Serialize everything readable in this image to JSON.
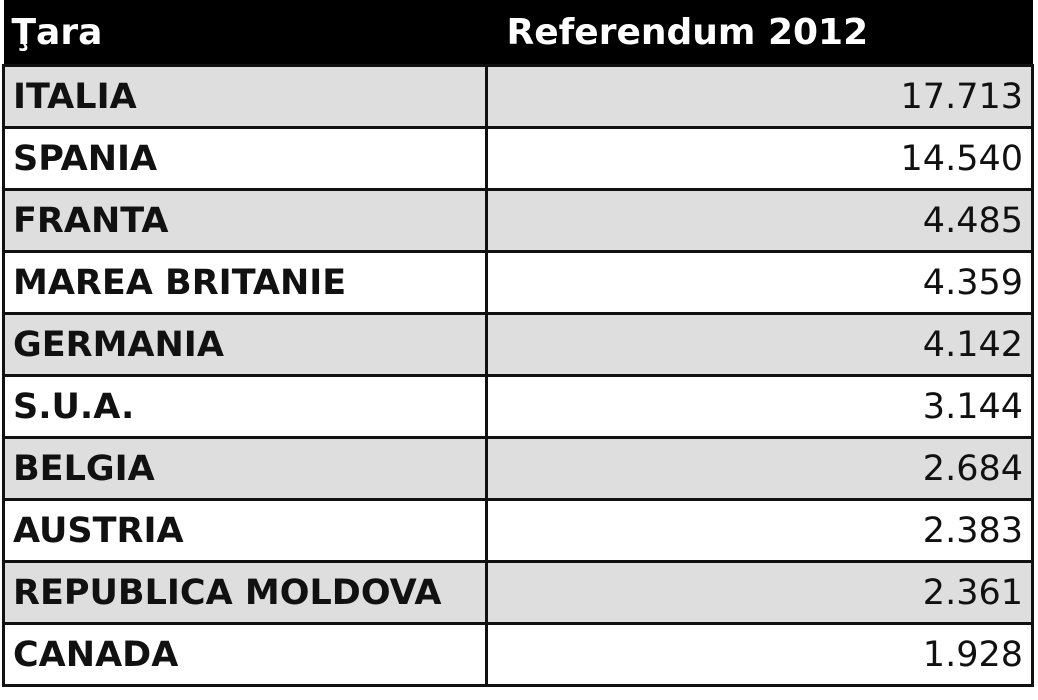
{
  "table": {
    "headers": [
      "Ţara",
      "Referendum 2012"
    ],
    "rows": [
      {
        "country": "ITALIA",
        "value": "17.713"
      },
      {
        "country": "SPANIA",
        "value": "14.540"
      },
      {
        "country": "FRANTA",
        "value": "4.485"
      },
      {
        "country": "MAREA BRITANIE",
        "value": "4.359"
      },
      {
        "country": "GERMANIA",
        "value": "4.142"
      },
      {
        "country": "S.U.A.",
        "value": "3.144"
      },
      {
        "country": "BELGIA",
        "value": "2.684"
      },
      {
        "country": "AUSTRIA",
        "value": "2.383"
      },
      {
        "country": "REPUBLICA MOLDOVA",
        "value": "2.361"
      },
      {
        "country": "CANADA",
        "value": "1.928"
      }
    ],
    "colors": {
      "header_bg": "#000000",
      "stripe": "#dedede"
    }
  }
}
